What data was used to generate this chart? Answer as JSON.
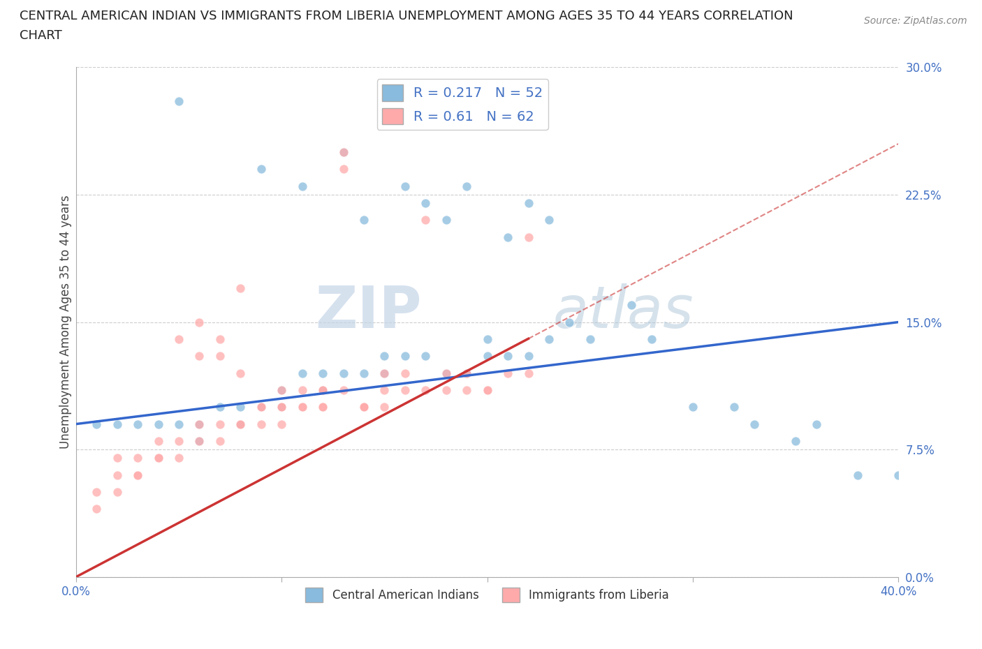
{
  "title_line1": "CENTRAL AMERICAN INDIAN VS IMMIGRANTS FROM LIBERIA UNEMPLOYMENT AMONG AGES 35 TO 44 YEARS CORRELATION",
  "title_line2": "CHART",
  "source_text": "Source: ZipAtlas.com",
  "ylabel": "Unemployment Among Ages 35 to 44 years",
  "xlim": [
    0.0,
    0.4
  ],
  "ylim": [
    0.0,
    0.3
  ],
  "xticks": [
    0.0,
    0.1,
    0.2,
    0.3,
    0.4
  ],
  "yticks": [
    0.0,
    0.075,
    0.15,
    0.225,
    0.3
  ],
  "ytick_labels": [
    "0.0%",
    "7.5%",
    "15.0%",
    "22.5%",
    "30.0%"
  ],
  "xtick_labels": [
    "0.0%",
    "",
    "",
    "",
    "40.0%"
  ],
  "blue_color": "#88bbdd",
  "pink_color": "#ffaaaa",
  "blue_line_color": "#3366cc",
  "pink_line_color": "#cc3333",
  "watermark_zip": "ZIP",
  "watermark_atlas": "atlas",
  "R_blue": 0.217,
  "N_blue": 52,
  "R_pink": 0.61,
  "N_pink": 62,
  "blue_line_start_y": 0.09,
  "blue_line_end_y": 0.15,
  "pink_line_start_y": 0.0,
  "pink_line_end_y": 0.255,
  "pink_line_solid_end_x": 0.22,
  "blue_scatter_x": [
    0.05,
    0.09,
    0.11,
    0.13,
    0.14,
    0.16,
    0.17,
    0.18,
    0.19,
    0.21,
    0.22,
    0.23,
    0.24,
    0.27,
    0.01,
    0.02,
    0.03,
    0.04,
    0.05,
    0.06,
    0.06,
    0.07,
    0.08,
    0.08,
    0.09,
    0.1,
    0.1,
    0.11,
    0.12,
    0.12,
    0.13,
    0.14,
    0.15,
    0.15,
    0.16,
    0.17,
    0.18,
    0.19,
    0.2,
    0.21,
    0.22,
    0.23,
    0.25,
    0.28,
    0.33,
    0.35,
    0.38,
    0.4,
    0.36,
    0.3,
    0.32,
    0.2
  ],
  "blue_scatter_y": [
    0.28,
    0.24,
    0.23,
    0.25,
    0.21,
    0.23,
    0.22,
    0.21,
    0.23,
    0.2,
    0.22,
    0.21,
    0.15,
    0.16,
    0.09,
    0.09,
    0.09,
    0.09,
    0.09,
    0.08,
    0.09,
    0.1,
    0.09,
    0.1,
    0.1,
    0.1,
    0.11,
    0.12,
    0.11,
    0.12,
    0.12,
    0.12,
    0.12,
    0.13,
    0.13,
    0.13,
    0.12,
    0.12,
    0.13,
    0.13,
    0.13,
    0.14,
    0.14,
    0.14,
    0.09,
    0.08,
    0.06,
    0.06,
    0.09,
    0.1,
    0.1,
    0.14
  ],
  "pink_scatter_x": [
    0.01,
    0.01,
    0.02,
    0.02,
    0.02,
    0.03,
    0.03,
    0.03,
    0.04,
    0.04,
    0.04,
    0.05,
    0.05,
    0.05,
    0.06,
    0.06,
    0.06,
    0.07,
    0.07,
    0.07,
    0.08,
    0.08,
    0.08,
    0.09,
    0.09,
    0.09,
    0.1,
    0.1,
    0.1,
    0.11,
    0.11,
    0.11,
    0.12,
    0.12,
    0.12,
    0.13,
    0.13,
    0.14,
    0.14,
    0.15,
    0.15,
    0.16,
    0.16,
    0.17,
    0.17,
    0.18,
    0.18,
    0.19,
    0.2,
    0.21,
    0.22,
    0.22,
    0.13,
    0.08,
    0.06,
    0.07,
    0.1,
    0.12,
    0.14,
    0.15,
    0.19,
    0.2
  ],
  "pink_scatter_y": [
    0.04,
    0.05,
    0.05,
    0.06,
    0.07,
    0.06,
    0.06,
    0.07,
    0.07,
    0.07,
    0.08,
    0.07,
    0.08,
    0.14,
    0.08,
    0.09,
    0.13,
    0.08,
    0.09,
    0.13,
    0.09,
    0.09,
    0.12,
    0.09,
    0.1,
    0.1,
    0.09,
    0.1,
    0.1,
    0.1,
    0.1,
    0.11,
    0.1,
    0.1,
    0.11,
    0.11,
    0.24,
    0.1,
    0.1,
    0.11,
    0.12,
    0.11,
    0.12,
    0.11,
    0.21,
    0.11,
    0.12,
    0.12,
    0.11,
    0.12,
    0.12,
    0.2,
    0.25,
    0.17,
    0.15,
    0.14,
    0.11,
    0.11,
    0.1,
    0.1,
    0.11,
    0.11
  ]
}
